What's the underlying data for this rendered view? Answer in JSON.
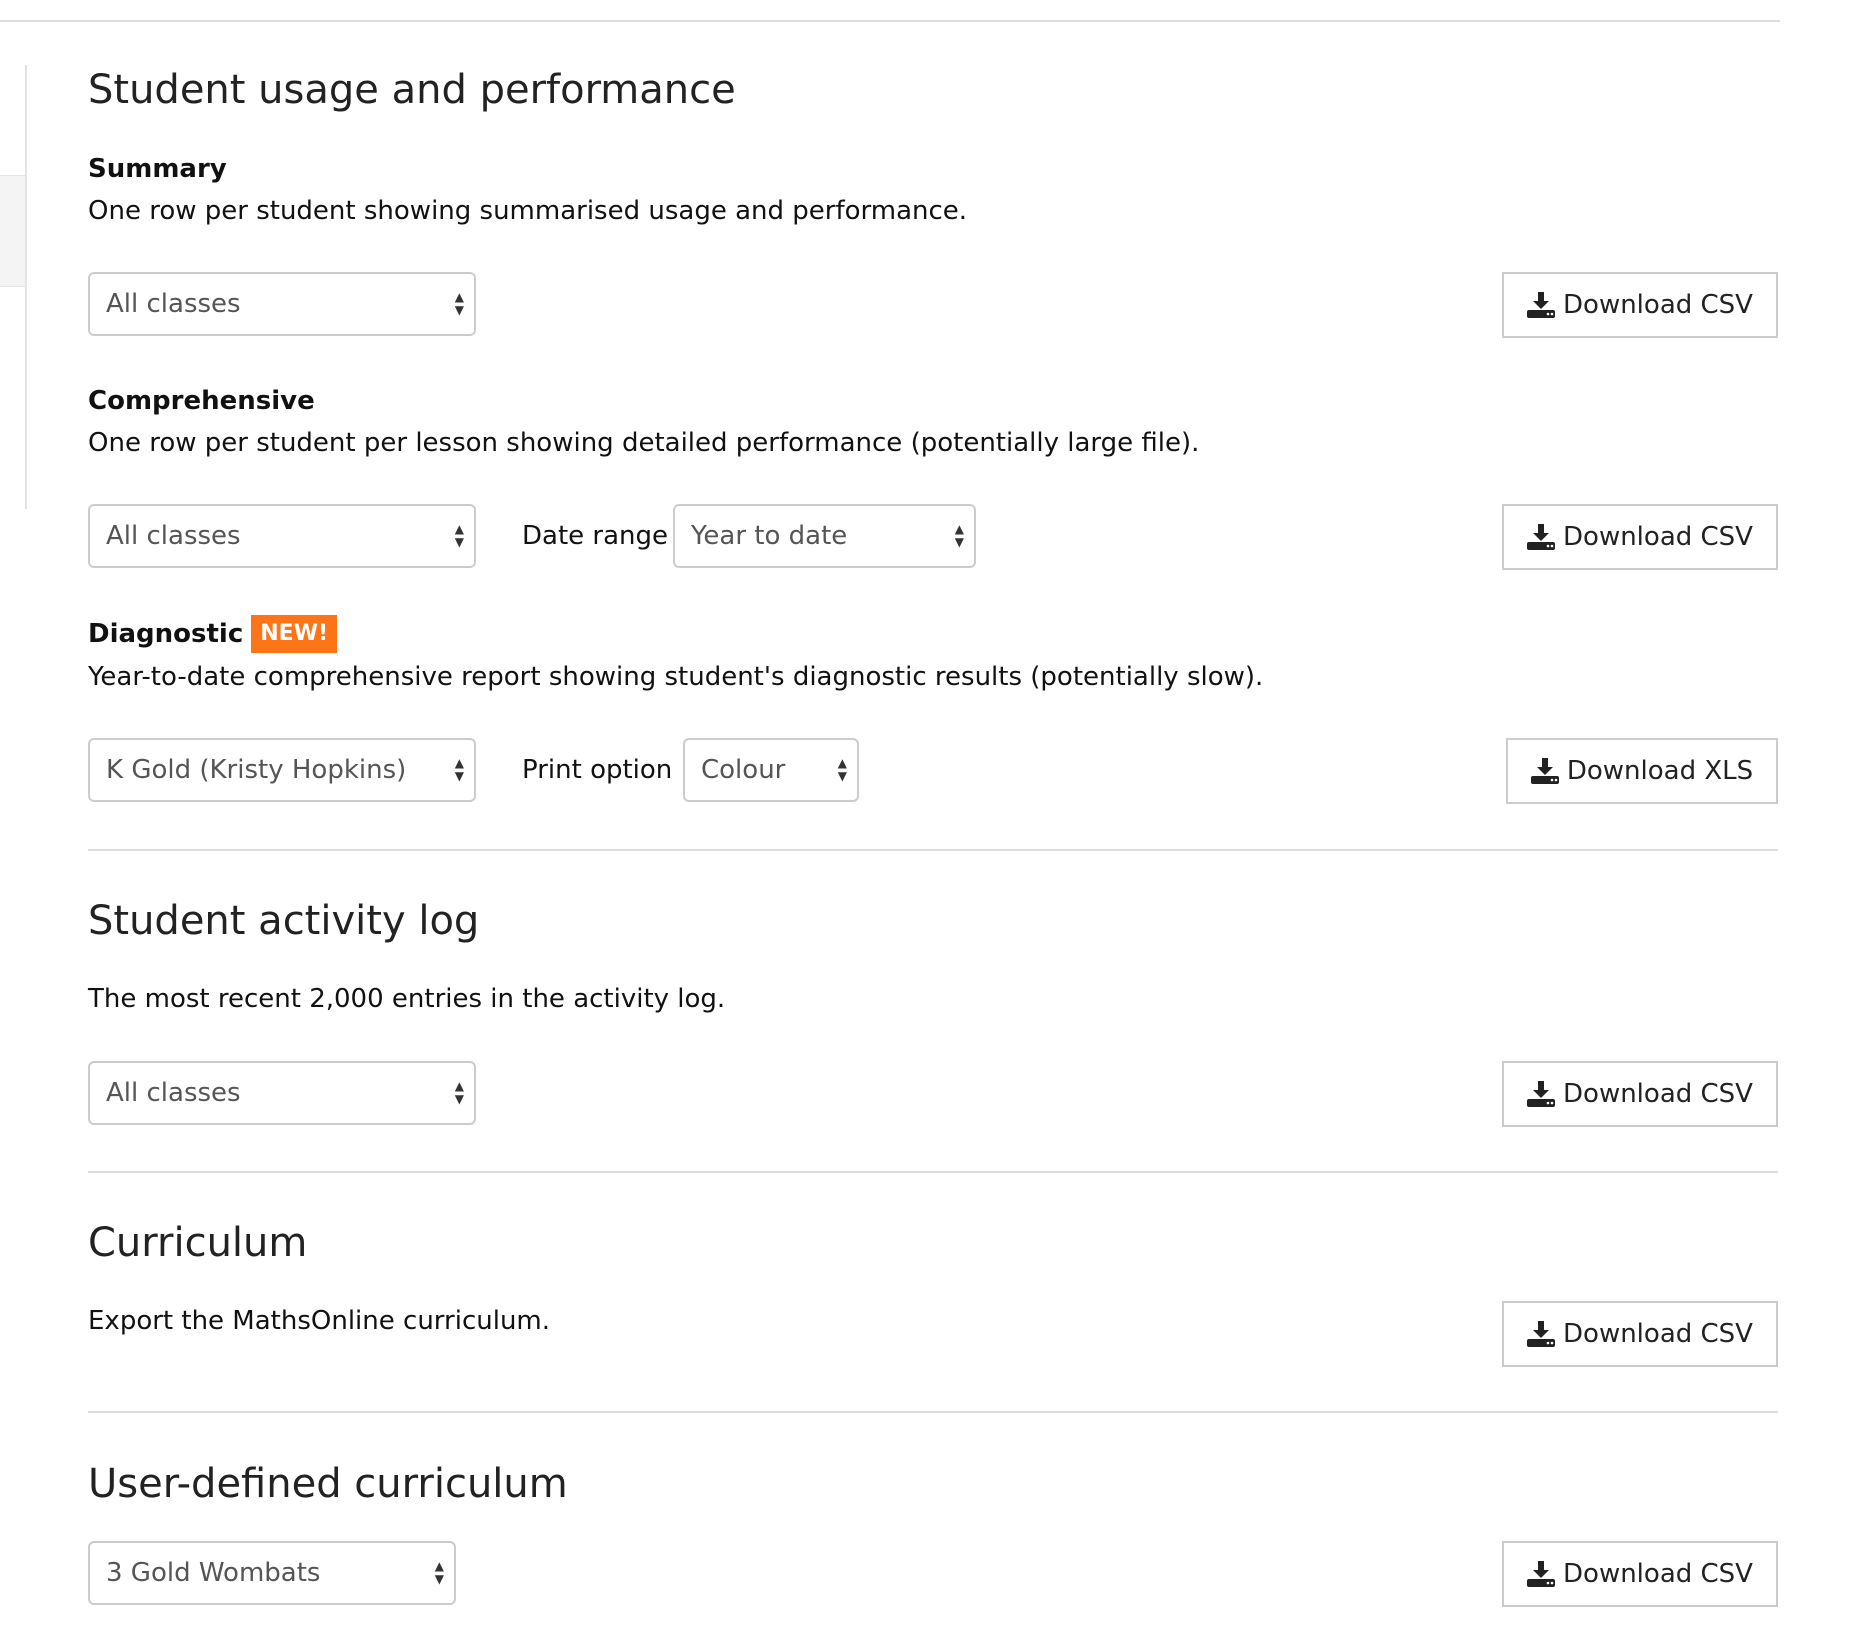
{
  "usage": {
    "title": "Student usage and performance",
    "summary": {
      "heading": "Summary",
      "description": "One row per student showing summarised usage and performance.",
      "class_select": "All classes",
      "button": "Download CSV"
    },
    "comprehensive": {
      "heading": "Comprehensive",
      "description": "One row per student per lesson showing detailed performance (potentially large file).",
      "class_select": "All classes",
      "date_range_label": "Date range",
      "date_range_select": "Year to date",
      "button": "Download CSV"
    },
    "diagnostic": {
      "heading": "Diagnostic",
      "badge": "NEW!",
      "description": "Year-to-date comprehensive report showing student's diagnostic results (potentially slow).",
      "class_select": "K Gold (Kristy Hopkins)",
      "print_option_label": "Print option",
      "print_option_select": "Colour",
      "button": "Download XLS"
    }
  },
  "activity_log": {
    "title": "Student activity log",
    "description": "The most recent 2,000 entries in the activity log.",
    "class_select": "All classes",
    "button": "Download CSV"
  },
  "curriculum": {
    "title": "Curriculum",
    "description": "Export the MathsOnline curriculum.",
    "button": "Download CSV"
  },
  "user_curriculum": {
    "title": "User-defined curriculum",
    "class_select": "3 Gold Wombats",
    "button": "Download CSV"
  },
  "colors": {
    "badge": "#ff7417",
    "border": "#cccccc",
    "divider": "#dddddd"
  }
}
